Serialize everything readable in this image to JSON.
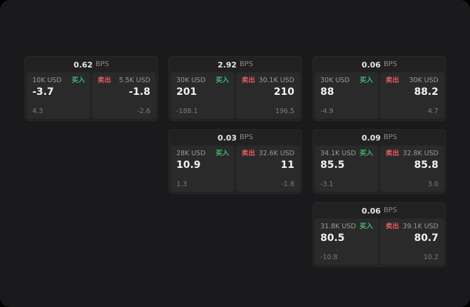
{
  "labels": {
    "bps": "BPS",
    "buy": "买入",
    "sell": "卖出"
  },
  "colors": {
    "background": "#1a1a1c",
    "card": "#212122",
    "panel": "#2a2a2b",
    "buy": "#45b36b",
    "sell": "#e05c5c"
  },
  "cards": [
    {
      "bps": "0.62",
      "buy": {
        "size": "10K USD",
        "price": "-3.7",
        "sub": "4.3"
      },
      "sell": {
        "size": "5.5K USD",
        "price": "-1.8",
        "sub": "-2.6"
      }
    },
    {
      "bps": "2.92",
      "buy": {
        "size": "30K USD",
        "price": "201",
        "sub": "-188.1"
      },
      "sell": {
        "size": "30.1K USD",
        "price": "210",
        "sub": "196.5"
      }
    },
    {
      "bps": "0.06",
      "buy": {
        "size": "30K USD",
        "price": "88",
        "sub": "-4.9"
      },
      "sell": {
        "size": "30K USD",
        "price": "88.2",
        "sub": "4.7"
      }
    },
    {
      "bps": "0.03",
      "buy": {
        "size": "28K USD",
        "price": "10.9",
        "sub": "1.3"
      },
      "sell": {
        "size": "32.6K USD",
        "price": "11",
        "sub": "-1.8"
      }
    },
    {
      "bps": "0.09",
      "buy": {
        "size": "34.1K USD",
        "price": "85.5",
        "sub": "-3.1"
      },
      "sell": {
        "size": "32.8K USD",
        "price": "85.8",
        "sub": "3.0"
      }
    },
    {
      "bps": "0.06",
      "buy": {
        "size": "31.8K USD",
        "price": "80.5",
        "sub": "-10.8"
      },
      "sell": {
        "size": "39.1K USD",
        "price": "80.7",
        "sub": "10.2"
      }
    }
  ]
}
